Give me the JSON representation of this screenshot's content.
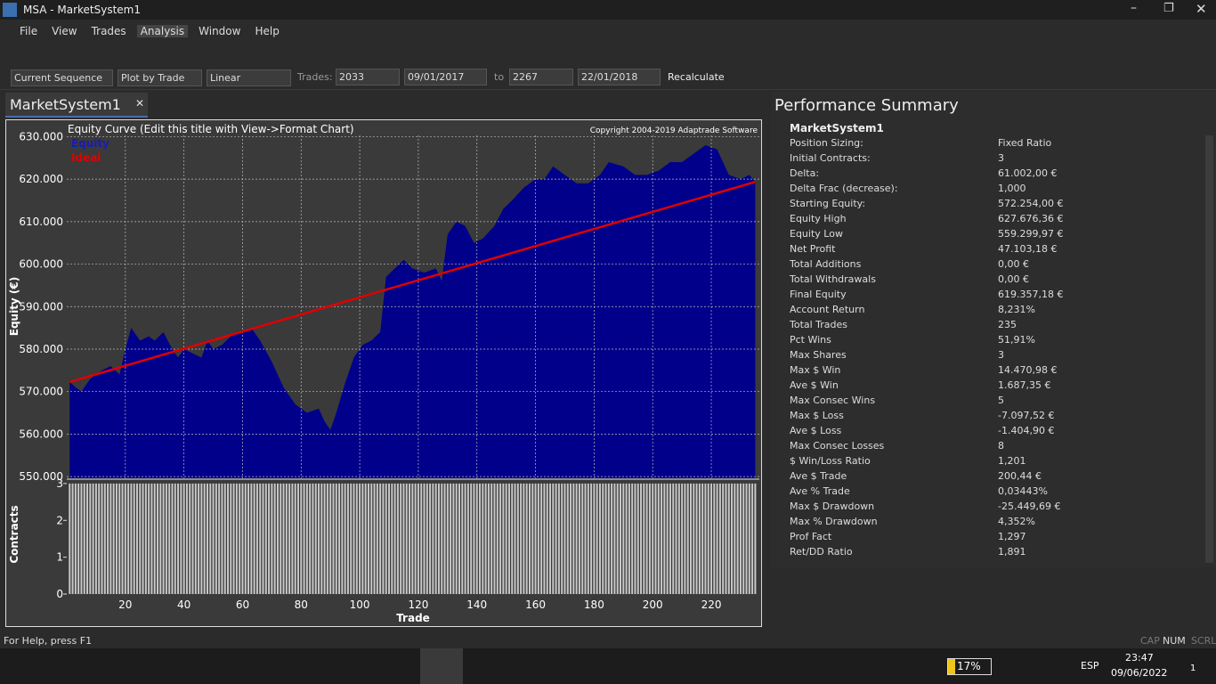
{
  "window": {
    "title": "MSA - MarketSystem1"
  },
  "menu": [
    "File",
    "View",
    "Trades",
    "Analysis",
    "Window",
    "Help"
  ],
  "toolbar": {
    "sequence": "Current Sequence",
    "plot_by": "Plot by Trade",
    "scale": "Linear",
    "trades_label": "Trades:",
    "trade_from": "2033",
    "date_from": "09/01/2017",
    "to_label": "to",
    "trade_to": "2267",
    "date_to": "22/01/2018",
    "recalculate": "Recalculate"
  },
  "document": {
    "tab": "MarketSystem1"
  },
  "chart_data": [
    {
      "type": "area",
      "title": "Equity Curve (Edit this title with View->Format Chart)",
      "copyright": "Copyright 2004-2019 Adaptrade Software",
      "ylabel": "Equity (€)",
      "grid": true,
      "legend": "upper left",
      "xlim": [
        0,
        236.4
      ],
      "ylim": [
        549600,
        630300
      ],
      "yticks": [
        {
          "value": 550000,
          "label": "550.000"
        },
        {
          "value": 560000,
          "label": "560.000"
        },
        {
          "value": 570000,
          "label": "570.000"
        },
        {
          "value": 580000,
          "label": "580.000"
        },
        {
          "value": 590000,
          "label": "590.000"
        },
        {
          "value": 600000,
          "label": "600.000"
        },
        {
          "value": 610000,
          "label": "610.000"
        },
        {
          "value": 620000,
          "label": "620.000"
        },
        {
          "value": 630000,
          "label": "630.000"
        }
      ],
      "xticks": [
        20,
        40,
        60,
        80,
        100,
        120,
        140,
        160,
        180,
        200,
        220
      ],
      "series": [
        {
          "name": "Equity",
          "color": "#00008b",
          "x": [
            1,
            3,
            5,
            8,
            12,
            15,
            18,
            20,
            22,
            25,
            28,
            30,
            33,
            36,
            38,
            40,
            43,
            46,
            48,
            50,
            53,
            56,
            60,
            63,
            66,
            70,
            74,
            78,
            82,
            86,
            88,
            90,
            92,
            95,
            98,
            101,
            104,
            107,
            109,
            112,
            115,
            118,
            122,
            126,
            128,
            130,
            133,
            136,
            139,
            142,
            146,
            149,
            152,
            156,
            160,
            163,
            166,
            170,
            174,
            178,
            182,
            185,
            190,
            194,
            198,
            202,
            206,
            210,
            214,
            218,
            222,
            226,
            230,
            233,
            235
          ],
          "values": [
            572254,
            571000,
            570000,
            573000,
            575000,
            576000,
            574000,
            580000,
            585000,
            582000,
            583000,
            582000,
            584000,
            580000,
            578000,
            580000,
            579000,
            578000,
            582000,
            580000,
            581000,
            583000,
            584000,
            585000,
            582000,
            577000,
            571000,
            567000,
            565000,
            566000,
            563000,
            561000,
            565000,
            572000,
            578000,
            581000,
            582000,
            584000,
            597000,
            599000,
            601000,
            599000,
            598000,
            599000,
            596000,
            607000,
            610000,
            609000,
            605000,
            606000,
            609000,
            613000,
            615000,
            618000,
            620000,
            620000,
            623000,
            621000,
            619000,
            619000,
            621000,
            624000,
            623000,
            621000,
            621000,
            622000,
            624000,
            624000,
            626000,
            628000,
            627000,
            621000,
            620000,
            621000,
            619357
          ]
        },
        {
          "name": "Ideal",
          "color": "#e00000",
          "x": [
            1,
            235
          ],
          "values": [
            572254,
            619357
          ]
        }
      ]
    },
    {
      "type": "bar",
      "xlabel": "Trade",
      "ylabel": "Contracts",
      "ylim": [
        0,
        3.07
      ],
      "yticks": [
        0,
        1,
        2,
        3
      ],
      "color": "#c8c8c8",
      "x": [
        1,
        2,
        3,
        4,
        5,
        6,
        7,
        8,
        9,
        10,
        11,
        12,
        13,
        14,
        15,
        16,
        17,
        18,
        19,
        20,
        21,
        22,
        23,
        24,
        25,
        26,
        27,
        28,
        29,
        30,
        31,
        32,
        33,
        34,
        35,
        36,
        37,
        38,
        39,
        40,
        41,
        42,
        43,
        44,
        45,
        46,
        47,
        48,
        49,
        50,
        51,
        52,
        53,
        54,
        55,
        56,
        57,
        58,
        59,
        60,
        61,
        62,
        63,
        64,
        65,
        66,
        67,
        68,
        69,
        70,
        71,
        72,
        73,
        74,
        75,
        76,
        77,
        78,
        79,
        80,
        81,
        82,
        83,
        84,
        85,
        86,
        87,
        88,
        89,
        90,
        91,
        92,
        93,
        94,
        95,
        96,
        97,
        98,
        99,
        100,
        101,
        102,
        103,
        104,
        105,
        106,
        107,
        108,
        109,
        110,
        111,
        112,
        113,
        114,
        115,
        116,
        117,
        118,
        119,
        120,
        121,
        122,
        123,
        124,
        125,
        126,
        127,
        128,
        129,
        130,
        131,
        132,
        133,
        134,
        135,
        136,
        137,
        138,
        139,
        140,
        141,
        142,
        143,
        144,
        145,
        146,
        147,
        148,
        149,
        150,
        151,
        152,
        153,
        154,
        155,
        156,
        157,
        158,
        159,
        160,
        161,
        162,
        163,
        164,
        165,
        166,
        167,
        168,
        169,
        170,
        171,
        172,
        173,
        174,
        175,
        176,
        177,
        178,
        179,
        180,
        181,
        182,
        183,
        184,
        185,
        186,
        187,
        188,
        189,
        190,
        191,
        192,
        193,
        194,
        195,
        196,
        197,
        198,
        199,
        200,
        201,
        202,
        203,
        204,
        205,
        206,
        207,
        208,
        209,
        210,
        211,
        212,
        213,
        214,
        215,
        216,
        217,
        218,
        219,
        220,
        221,
        222,
        223,
        224,
        225,
        226,
        227,
        228,
        229,
        230,
        231,
        232,
        233,
        234,
        235
      ],
      "values": [
        3,
        3,
        3,
        3,
        3,
        3,
        3,
        3,
        3,
        3,
        3,
        3,
        3,
        3,
        3,
        3,
        3,
        3,
        3,
        3,
        3,
        3,
        3,
        3,
        3,
        3,
        3,
        3,
        3,
        3,
        3,
        3,
        3,
        3,
        3,
        3,
        3,
        3,
        3,
        3,
        3,
        3,
        3,
        3,
        3,
        3,
        3,
        3,
        3,
        3,
        3,
        3,
        3,
        3,
        3,
        3,
        3,
        3,
        3,
        3,
        3,
        3,
        3,
        3,
        3,
        3,
        3,
        3,
        3,
        3,
        3,
        3,
        3,
        3,
        3,
        3,
        3,
        3,
        3,
        3,
        3,
        3,
        3,
        3,
        3,
        3,
        3,
        3,
        3,
        3,
        3,
        3,
        3,
        3,
        3,
        3,
        3,
        3,
        3,
        3,
        3,
        3,
        3,
        3,
        3,
        3,
        3,
        3,
        3,
        3,
        3,
        3,
        3,
        3,
        3,
        3,
        3,
        3,
        3,
        3,
        3,
        3,
        3,
        3,
        3,
        3,
        3,
        3,
        3,
        3,
        3,
        3,
        3,
        3,
        3,
        3,
        3,
        3,
        3,
        3,
        3,
        3,
        3,
        3,
        3,
        3,
        3,
        3,
        3,
        3,
        3,
        3,
        3,
        3,
        3,
        3,
        3,
        3,
        3,
        3,
        3,
        3,
        3,
        3,
        3,
        3,
        3,
        3,
        3,
        3,
        3,
        3,
        3,
        3,
        3,
        3,
        3,
        3,
        3,
        3,
        3,
        3,
        3,
        3,
        3,
        3,
        3,
        3,
        3,
        3,
        3,
        3,
        3,
        3,
        3,
        3,
        3,
        3,
        3,
        3,
        3,
        3,
        3,
        3,
        3,
        3,
        3,
        3,
        3,
        3,
        3,
        3,
        3,
        3,
        3,
        3,
        3,
        3,
        3,
        3,
        3,
        3,
        3,
        3,
        3,
        3,
        3,
        3,
        3,
        3,
        3,
        3,
        3,
        3,
        3
      ]
    }
  ],
  "summary": {
    "title": "Performance Summary",
    "system": "MarketSystem1",
    "rows": [
      [
        "Position Sizing:",
        "Fixed Ratio"
      ],
      [
        "Initial Contracts:",
        "3"
      ],
      [
        "Delta:",
        "61.002,00 €"
      ],
      [
        "Delta Frac (decrease):",
        "1,000"
      ],
      [
        "Starting Equity:",
        "572.254,00 €"
      ],
      [
        "Equity High",
        "627.676,36 €"
      ],
      [
        "Equity Low",
        "559.299,97 €"
      ],
      [
        "Net Profit",
        "47.103,18 €"
      ],
      [
        "Total Additions",
        "0,00 €"
      ],
      [
        "Total Withdrawals",
        "0,00 €"
      ],
      [
        "Final Equity",
        "619.357,18 €"
      ],
      [
        "Account Return",
        "8,231%"
      ],
      [
        "Total Trades",
        "235"
      ],
      [
        "Pct Wins",
        "51,91%"
      ],
      [
        "Max Shares",
        "3"
      ],
      [
        "Max $ Win",
        "14.470,98 €"
      ],
      [
        "Ave $ Win",
        "1.687,35 €"
      ],
      [
        "Max Consec Wins",
        "5"
      ],
      [
        "Max $ Loss",
        "-7.097,52 €"
      ],
      [
        "Ave $ Loss",
        "-1.404,90 €"
      ],
      [
        "Max Consec Losses",
        "8"
      ],
      [
        "$ Win/Loss Ratio",
        "1,201"
      ],
      [
        "Ave $ Trade",
        "200,44 €"
      ],
      [
        "Ave % Trade",
        "0,03443%"
      ],
      [
        "Max $ Drawdown",
        "-25.449,69 €"
      ],
      [
        "Max % Drawdown",
        "4,352%"
      ],
      [
        "Prof Fact",
        "1,297"
      ],
      [
        "Ret/DD Ratio",
        "1,891"
      ]
    ]
  },
  "status": {
    "help": "For Help, press F1",
    "cap": "CAP",
    "num": "NUM",
    "scrl": "SCRL"
  },
  "taskbar": {
    "battery": "17%",
    "lang": "ESP",
    "time": "23:47",
    "date": "09/06/2022",
    "notifications": "1"
  }
}
